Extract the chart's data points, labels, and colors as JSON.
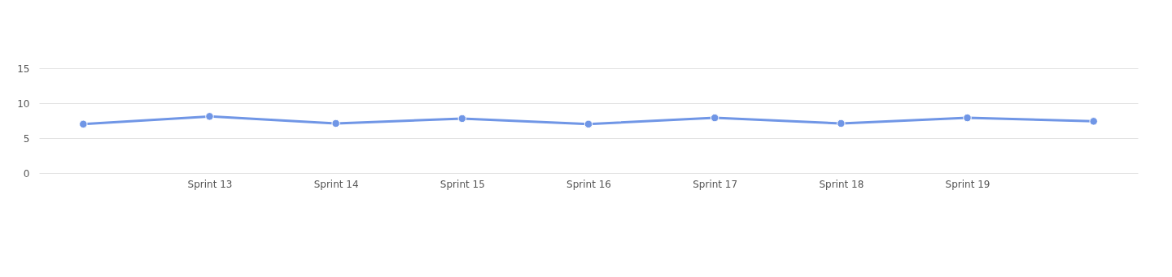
{
  "chart_data": {
    "type": "line",
    "categories": [
      null,
      "Sprint 13",
      "Sprint 14",
      "Sprint 15",
      "Sprint 16",
      "Sprint 17",
      "Sprint 18",
      "Sprint 19",
      null
    ],
    "series": [
      {
        "color": "#7096e6",
        "values": [
          7.0,
          8.1,
          7.1,
          7.8,
          7.0,
          7.9,
          7.1,
          7.9,
          7.4
        ]
      }
    ],
    "ylim": [
      0,
      15
    ],
    "yticks": [
      0,
      5,
      10,
      15
    ],
    "grid": "y",
    "marker": "circle",
    "line_style": "solid"
  }
}
